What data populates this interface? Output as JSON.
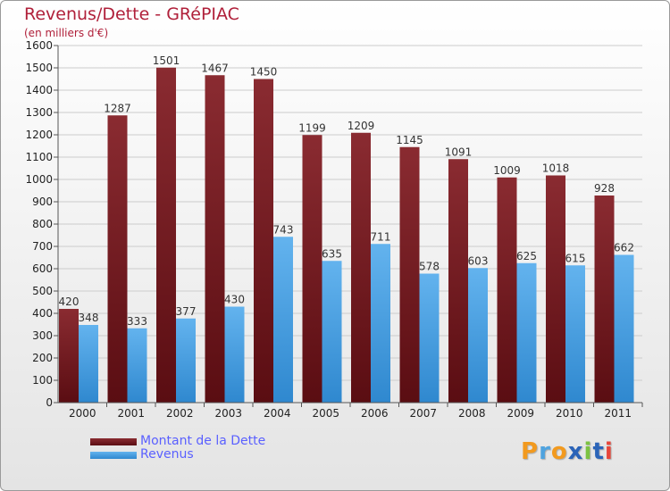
{
  "title": "Revenus/Dette - GRéPIAC",
  "subtitle": "(en milliers d'€)",
  "chart_data": {
    "type": "bar",
    "categories": [
      "2000",
      "2001",
      "2002",
      "2003",
      "2004",
      "2005",
      "2006",
      "2007",
      "2008",
      "2009",
      "2010",
      "2011"
    ],
    "series": [
      {
        "name": "Montant de la Dette",
        "values": [
          420,
          1287,
          1501,
          1467,
          1450,
          1199,
          1209,
          1145,
          1091,
          1009,
          1018,
          928
        ],
        "color": "#7a1e24"
      },
      {
        "name": "Revenus",
        "values": [
          348,
          333,
          377,
          430,
          743,
          635,
          711,
          578,
          603,
          625,
          615,
          662
        ],
        "color": "#4aa0e6"
      }
    ],
    "ylim": [
      0,
      1600
    ],
    "yticks": [
      0,
      100,
      200,
      300,
      400,
      500,
      600,
      700,
      800,
      900,
      1000,
      1100,
      1200,
      1300,
      1400,
      1500,
      1600
    ],
    "grid": true,
    "legend_position": "bottom-left"
  },
  "logo": {
    "letters": [
      "P",
      "r",
      "o",
      "x",
      "i",
      "t",
      "i"
    ],
    "colors": [
      "#f29a1f",
      "#4fa3df",
      "#f29a1f",
      "#2b64b8",
      "#7cc242",
      "#2b64b8",
      "#e8473b"
    ]
  }
}
